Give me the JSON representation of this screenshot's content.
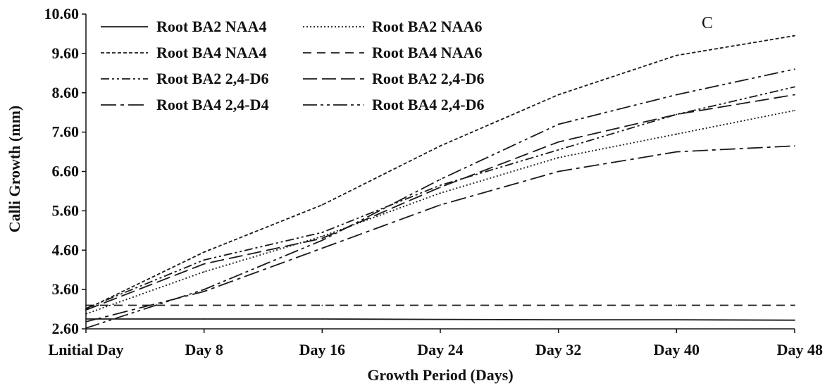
{
  "chart_data": {
    "type": "line",
    "panel_label": "C",
    "xlabel": "Growth Period (Days)",
    "ylabel": "Calli Growth (mm)",
    "categories": [
      "Lnitial Day",
      "Day 8",
      "Day 16",
      "Day 24",
      "Day 32",
      "Day 40",
      "Day 48"
    ],
    "ylim": [
      2.6,
      10.6
    ],
    "yticks": [
      "2.60",
      "3.60",
      "4.60",
      "5.60",
      "6.60",
      "7.60",
      "8.60",
      "9.60",
      "10.60"
    ],
    "grid": false,
    "legend_position": "top-left",
    "series": [
      {
        "name": "Root BA2 NAA4",
        "dash": "solid",
        "values": [
          2.85,
          2.85,
          2.85,
          2.84,
          2.83,
          2.83,
          2.82
        ]
      },
      {
        "name": "Root BA2 NAA6",
        "dash": "dotted",
        "values": [
          2.98,
          4.05,
          4.95,
          6.05,
          6.95,
          7.55,
          8.15
        ]
      },
      {
        "name": "Root BA4 NAA4",
        "dash": "short-dash",
        "values": [
          3.1,
          4.55,
          5.75,
          7.25,
          8.55,
          9.55,
          10.05
        ]
      },
      {
        "name": "Root BA4 NAA6",
        "dash": "medium-dash",
        "values": [
          3.2,
          3.2,
          3.2,
          3.2,
          3.2,
          3.2,
          3.2
        ]
      },
      {
        "name": "Root BA2 2,4-D6",
        "dash": "dash-dot-dot",
        "values": [
          3.12,
          4.35,
          5.05,
          6.25,
          7.15,
          8.05,
          8.75
        ]
      },
      {
        "name": "Root BA2 2,4-D6",
        "dash": "long-dash",
        "values": [
          3.08,
          4.25,
          4.9,
          6.2,
          7.35,
          8.05,
          8.55
        ]
      },
      {
        "name": "Root BA4 2,4-D4",
        "dash": "long-dash-dot",
        "values": [
          2.78,
          3.55,
          4.65,
          5.75,
          6.6,
          7.1,
          7.25
        ]
      },
      {
        "name": "Root BA4 2,4-D6",
        "dash": "long-dash-dot-dot",
        "values": [
          2.62,
          3.6,
          4.85,
          6.4,
          7.8,
          8.55,
          9.2
        ]
      }
    ]
  }
}
